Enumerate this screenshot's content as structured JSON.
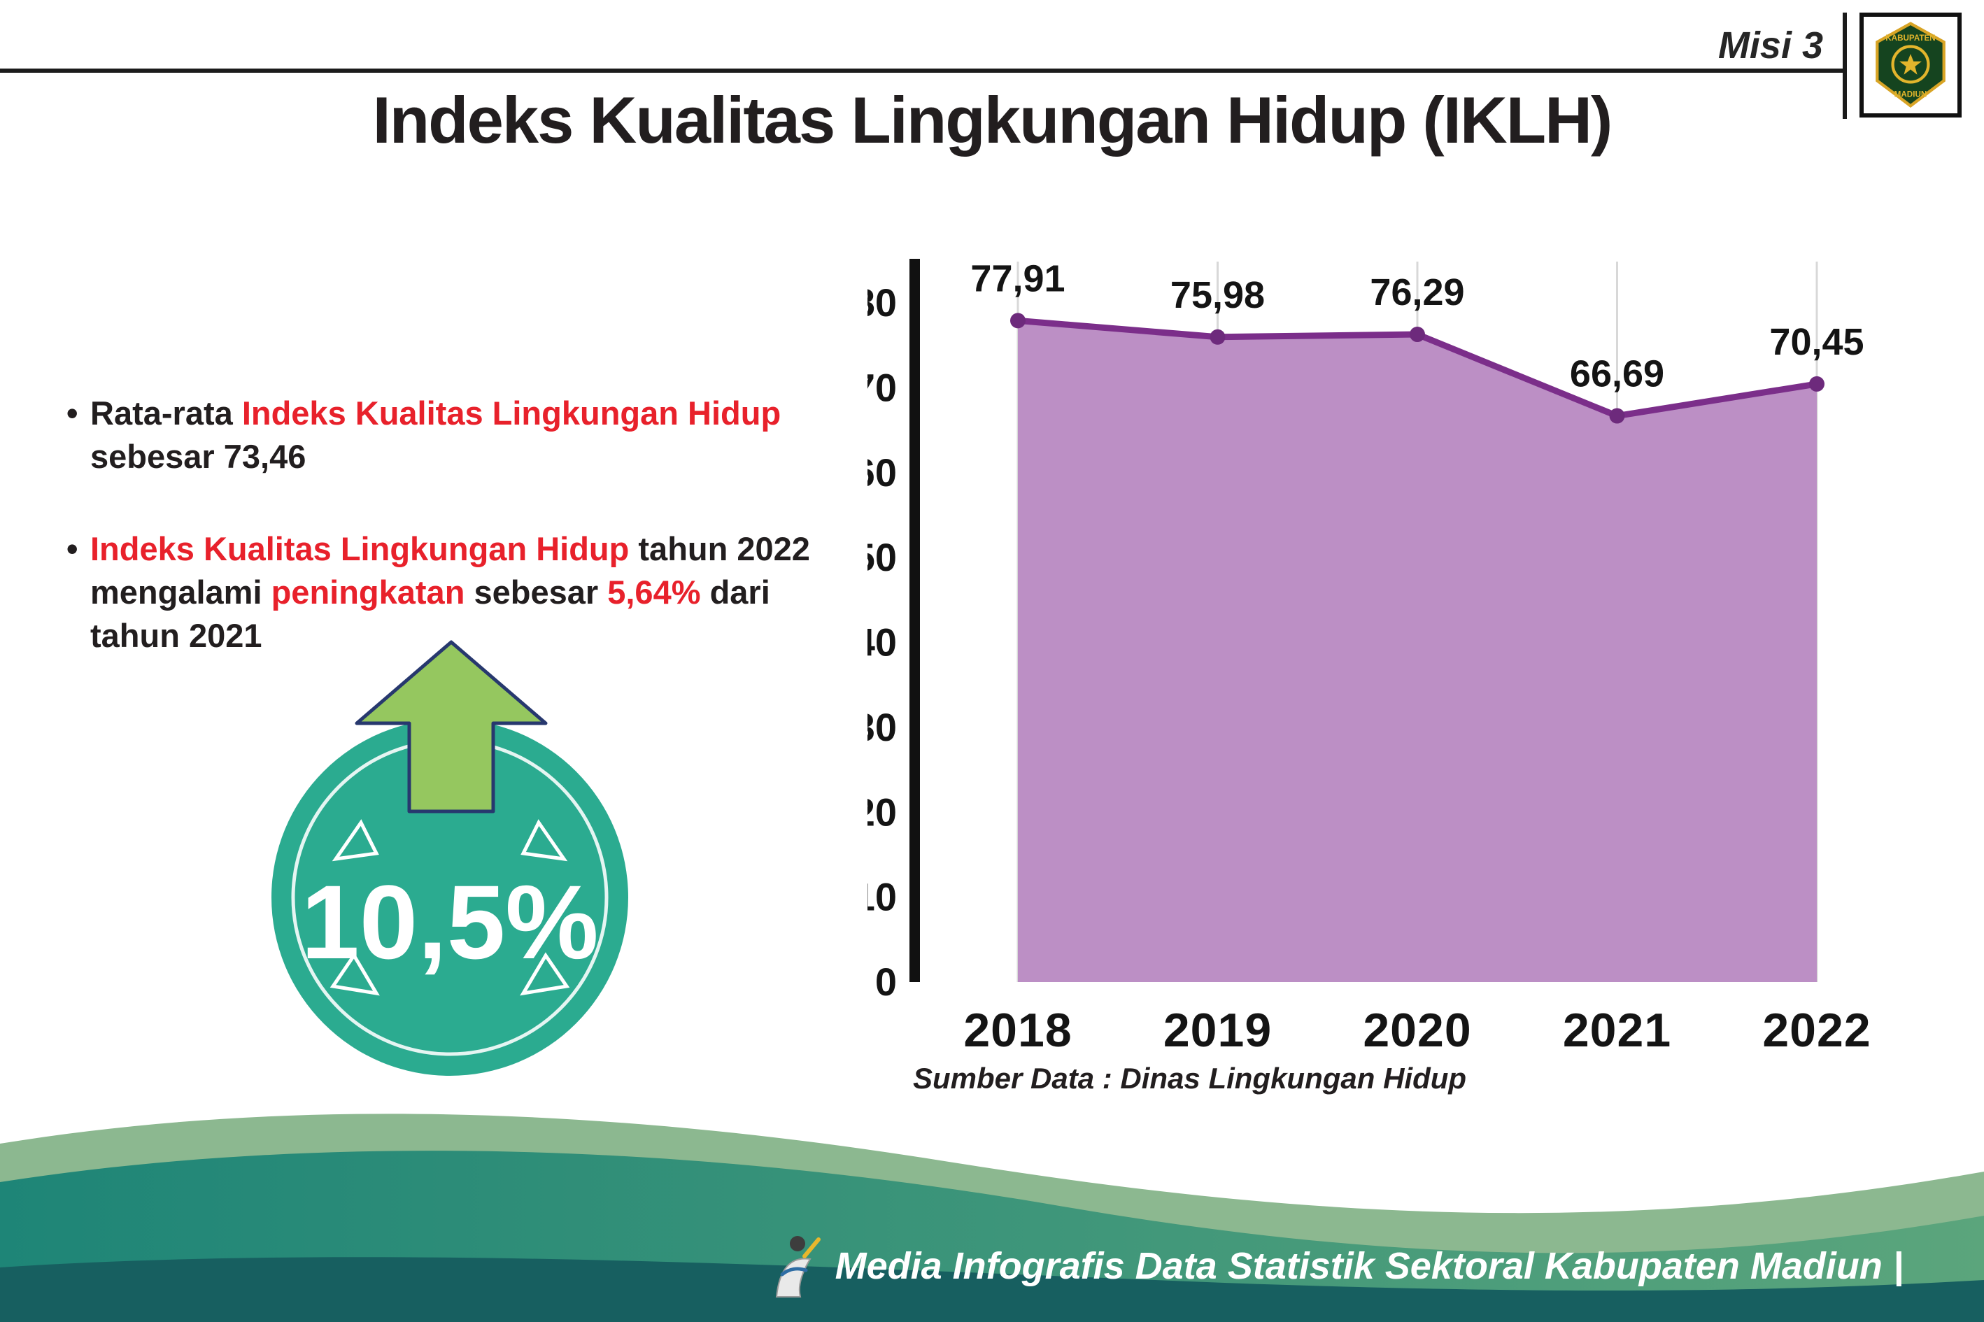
{
  "header": {
    "misi_label": "Misi 3",
    "title": "Indeks Kualitas Lingkungan Hidup (IKLH)"
  },
  "logo": {
    "text_top": "KABUPATEN",
    "text_bottom": "MADIUN"
  },
  "bullets": [
    {
      "parts": [
        {
          "text": "Rata-rata ",
          "red": false
        },
        {
          "text": "Indeks Kualitas Lingkungan Hidup",
          "red": true
        },
        {
          "text": " sebesar 73,46",
          "red": false
        }
      ]
    },
    {
      "parts": [
        {
          "text": "Indeks Kualitas Lingkungan Hidup",
          "red": true
        },
        {
          "text": " tahun 2022 mengalami ",
          "red": false
        },
        {
          "text": "peningkatan",
          "red": true
        },
        {
          "text": " sebesar ",
          "red": false
        },
        {
          "text": "5,64%",
          "red": true
        },
        {
          "text": " dari tahun 2021",
          "red": false
        }
      ]
    }
  ],
  "highlight_badge": {
    "value": "10,5%"
  },
  "chart_data": {
    "type": "area",
    "title": "Indeks Kualitas Lingkungan Hidup (IKLH)",
    "categories": [
      "2018",
      "2019",
      "2020",
      "2021",
      "2022"
    ],
    "values": [
      77.91,
      75.98,
      76.29,
      66.69,
      70.45
    ],
    "value_labels": [
      "77,91",
      "75,98",
      "76,29",
      "66,69",
      "70,45"
    ],
    "ylim": [
      0,
      80
    ],
    "ytick_step": 10,
    "grid": "vertical",
    "legend": "none",
    "area_color": "#bc8fc5",
    "line_color": "#7b2e8a",
    "marker_color": "#6d2a7c",
    "source": "Sumber Data : Dinas Lingkungan Hidup"
  },
  "footer": {
    "caption": "Media Infografis Data Statistik Sektoral Kabupaten Madiun |"
  },
  "colors": {
    "accent_red": "#e8212b",
    "badge_teal": "#2bab90",
    "arrow_green": "#95c75f",
    "footer_dark_teal": "#175f60"
  }
}
